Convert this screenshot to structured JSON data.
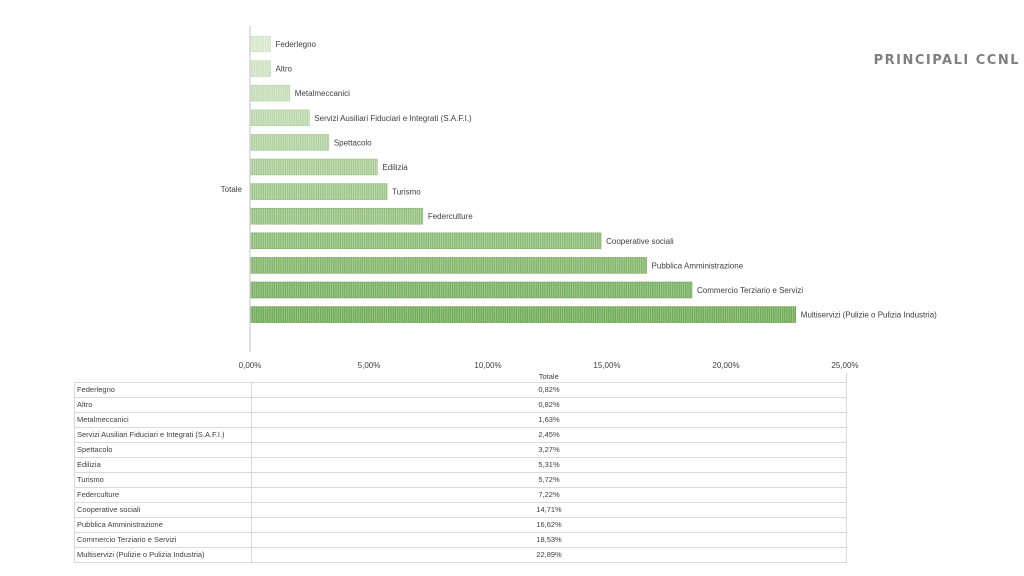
{
  "page": {
    "title": "PRINCIPALI CCNL"
  },
  "chart_data": {
    "type": "bar",
    "orientation": "horizontal",
    "category_axis_label": "Totale",
    "series_name": "Totale",
    "categories": [
      "Federlegno",
      "Altro",
      "Metalmeccanici",
      "Servizi Ausiliari Fiduciari e Integrati (S.A.F.I.)",
      "Spettacolo",
      "Edilizia",
      "Turismo",
      "Federculture",
      "Cooperative sociali",
      "Pubblica Amministrazione",
      "Commercio Terziario e Servizi",
      "Multiservizi (Pulizie o Pulizia Industria)"
    ],
    "values": [
      0.82,
      0.82,
      1.63,
      2.45,
      3.27,
      5.31,
      5.72,
      7.22,
      14.71,
      16.62,
      18.53,
      22.89
    ],
    "xlim": [
      0,
      25
    ],
    "x_ticks": [
      "0,00%",
      "5,00%",
      "10,00%",
      "15,00%",
      "20,00%",
      "25,00%"
    ],
    "unit": "%",
    "legend": "none",
    "grid": false,
    "colors": {
      "light": "#d6e7ca",
      "dark": "#6aa84f",
      "stroke": "#548235"
    }
  },
  "table": {
    "header": "Totale",
    "rows": [
      {
        "label": "Federlegno",
        "value": "0,82%"
      },
      {
        "label": "Altro",
        "value": "0,82%"
      },
      {
        "label": "Metalmeccanici",
        "value": "1,63%"
      },
      {
        "label": "Servizi Ausiliari Fiduciari e Integrati (S.A.F.I.)",
        "value": "2,45%"
      },
      {
        "label": "Spettacolo",
        "value": "3,27%"
      },
      {
        "label": "Edilizia",
        "value": "5,31%"
      },
      {
        "label": "Turismo",
        "value": "5,72%"
      },
      {
        "label": "Federculture",
        "value": "7,22%"
      },
      {
        "label": "Cooperative sociali",
        "value": "14,71%"
      },
      {
        "label": "Pubblica Amministrazione",
        "value": "16,62%"
      },
      {
        "label": "Commercio Terziario e Servizi",
        "value": "18,53%"
      },
      {
        "label": "Multiservizi (Pulizie o Pulizia Industria)",
        "value": "22,89%"
      }
    ]
  }
}
